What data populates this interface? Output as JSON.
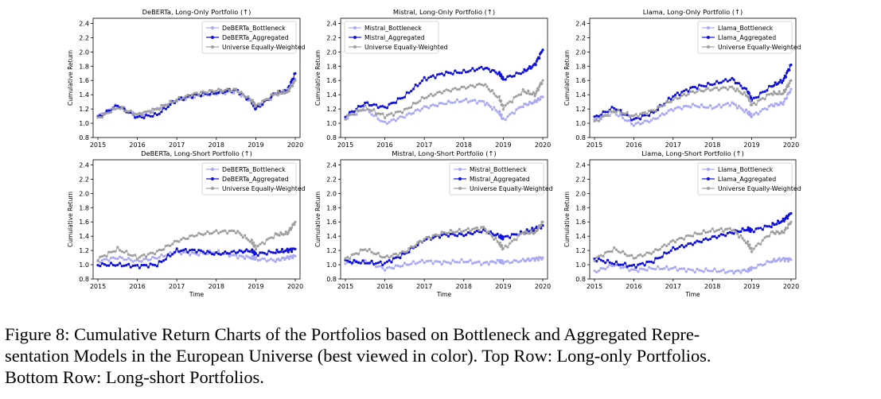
{
  "figure": {
    "caption_lines": [
      "Figure 8: Cumulative Return Charts of the Portfolios based on Bottleneck and Aggregated Repre-",
      "sentation Models in the European Universe (best viewed in color). Top Row: Long-only Portfolios.",
      "Bottom Row: Long-short Portfolios."
    ]
  },
  "colors": {
    "bottleneck": "#a9a9f5",
    "aggregated": "#1010dd",
    "universe": "#a0a0a0"
  },
  "chart_data": [
    {
      "type": "line",
      "title": "DeBERTa, Long-Only Portfolio (↑)",
      "xlabel": "",
      "ylabel": "Cumulative Return",
      "x_ticks": [
        "2015",
        "2016",
        "2017",
        "2018",
        "2019",
        "2020"
      ],
      "y_ticks": [
        "0.8",
        "1.0",
        "1.2",
        "1.4",
        "1.6",
        "1.8",
        "2.0",
        "2.2",
        "2.4"
      ],
      "xlim": [
        2015,
        2020
      ],
      "ylim": [
        0.8,
        2.45
      ],
      "legend_position": "top-right",
      "x": [
        2015.0,
        2015.5,
        2016.0,
        2016.5,
        2017.0,
        2017.5,
        2018.0,
        2018.5,
        2018.9,
        2019.0,
        2019.5,
        2019.8,
        2020.0
      ],
      "series": [
        {
          "name": "DeBERTa_Bottleneck",
          "color_key": "bottleneck",
          "values": [
            1.1,
            1.25,
            1.1,
            1.2,
            1.32,
            1.38,
            1.42,
            1.45,
            1.3,
            1.22,
            1.4,
            1.45,
            1.62
          ]
        },
        {
          "name": "DeBERTa_Aggregated",
          "color_key": "aggregated",
          "values": [
            1.08,
            1.25,
            1.08,
            1.12,
            1.33,
            1.4,
            1.43,
            1.47,
            1.3,
            1.2,
            1.42,
            1.46,
            1.7
          ]
        },
        {
          "name": "Universe Equally-Weighted",
          "color_key": "universe",
          "values": [
            1.07,
            1.22,
            1.12,
            1.2,
            1.33,
            1.42,
            1.46,
            1.47,
            1.32,
            1.24,
            1.42,
            1.44,
            1.6
          ]
        }
      ]
    },
    {
      "type": "line",
      "title": "Mistral, Long-Only Portfolio (↑)",
      "xlabel": "",
      "ylabel": "Cumulative Return",
      "x_ticks": [
        "2015",
        "2016",
        "2017",
        "2018",
        "2019",
        "2020"
      ],
      "y_ticks": [
        "0.8",
        "1.0",
        "1.2",
        "1.4",
        "1.6",
        "1.8",
        "2.0",
        "2.2",
        "2.4"
      ],
      "xlim": [
        2015,
        2020
      ],
      "ylim": [
        0.8,
        2.45
      ],
      "legend_position": "top-left",
      "x": [
        2015.0,
        2015.5,
        2016.0,
        2016.5,
        2017.0,
        2017.5,
        2018.0,
        2018.5,
        2018.9,
        2019.0,
        2019.5,
        2019.8,
        2020.0
      ],
      "series": [
        {
          "name": "Mistral_Bottleneck",
          "color_key": "bottleneck",
          "values": [
            1.08,
            1.2,
            1.0,
            1.1,
            1.22,
            1.28,
            1.32,
            1.3,
            1.15,
            1.05,
            1.25,
            1.3,
            1.37
          ]
        },
        {
          "name": "Mistral_Aggregated",
          "color_key": "aggregated",
          "values": [
            1.1,
            1.28,
            1.22,
            1.38,
            1.62,
            1.7,
            1.72,
            1.78,
            1.7,
            1.62,
            1.72,
            1.82,
            2.03
          ]
        },
        {
          "name": "Universe Equally-Weighted",
          "color_key": "universe",
          "values": [
            1.08,
            1.22,
            1.1,
            1.18,
            1.36,
            1.45,
            1.5,
            1.55,
            1.35,
            1.22,
            1.45,
            1.4,
            1.6
          ]
        }
      ]
    },
    {
      "type": "line",
      "title": "Llama, Long-Only Portfolio (↑)",
      "xlabel": "",
      "ylabel": "Cumulative Return",
      "x_ticks": [
        "2015",
        "2016",
        "2017",
        "2018",
        "2019",
        "2020"
      ],
      "y_ticks": [
        "0.8",
        "1.0",
        "1.2",
        "1.4",
        "1.6",
        "1.8",
        "2.0",
        "2.2",
        "2.4"
      ],
      "xlim": [
        2015,
        2020
      ],
      "ylim": [
        0.8,
        2.45
      ],
      "legend_position": "top-right",
      "x": [
        2015.0,
        2015.5,
        2016.0,
        2016.5,
        2017.0,
        2017.5,
        2018.0,
        2018.5,
        2018.9,
        2019.0,
        2019.5,
        2019.8,
        2020.0
      ],
      "series": [
        {
          "name": "Llama_Bottleneck",
          "color_key": "bottleneck",
          "values": [
            1.05,
            1.15,
            0.98,
            1.05,
            1.2,
            1.25,
            1.22,
            1.28,
            1.15,
            1.1,
            1.25,
            1.28,
            1.48
          ]
        },
        {
          "name": "Llama_Aggregated",
          "color_key": "aggregated",
          "values": [
            1.08,
            1.22,
            1.05,
            1.15,
            1.38,
            1.5,
            1.55,
            1.62,
            1.45,
            1.32,
            1.52,
            1.6,
            1.82
          ]
        },
        {
          "name": "Universe Equally-Weighted",
          "color_key": "universe",
          "values": [
            1.02,
            1.18,
            1.1,
            1.18,
            1.33,
            1.44,
            1.48,
            1.5,
            1.38,
            1.25,
            1.42,
            1.42,
            1.6
          ]
        }
      ]
    },
    {
      "type": "line",
      "title": "DeBERTa, Long-Short Portfolio (↑)",
      "xlabel": "Time",
      "ylabel": "Cumulative Return",
      "x_ticks": [
        "2015",
        "2016",
        "2017",
        "2018",
        "2019",
        "2020"
      ],
      "y_ticks": [
        "0.8",
        "1.0",
        "1.2",
        "1.4",
        "1.6",
        "1.8",
        "2.0",
        "2.2",
        "2.4"
      ],
      "xlim": [
        2015,
        2020
      ],
      "ylim": [
        0.8,
        2.45
      ],
      "legend_position": "top-right",
      "x": [
        2015.0,
        2015.5,
        2016.0,
        2016.5,
        2017.0,
        2017.5,
        2018.0,
        2018.5,
        2018.9,
        2019.0,
        2019.5,
        2019.8,
        2020.0
      ],
      "series": [
        {
          "name": "DeBERTa_Bottleneck",
          "color_key": "bottleneck",
          "values": [
            1.05,
            1.1,
            1.05,
            1.1,
            1.18,
            1.15,
            1.18,
            1.12,
            1.1,
            1.08,
            1.06,
            1.1,
            1.12
          ]
        },
        {
          "name": "DeBERTa_Aggregated",
          "color_key": "aggregated",
          "values": [
            1.0,
            1.0,
            0.98,
            1.0,
            1.2,
            1.2,
            1.15,
            1.18,
            1.2,
            1.15,
            1.18,
            1.2,
            1.22
          ]
        },
        {
          "name": "Universe Equally-Weighted",
          "color_key": "universe",
          "values": [
            1.08,
            1.22,
            1.1,
            1.18,
            1.33,
            1.42,
            1.46,
            1.47,
            1.32,
            1.24,
            1.42,
            1.44,
            1.6
          ]
        }
      ]
    },
    {
      "type": "line",
      "title": "Mistral, Long-Short Portfolio (↑)",
      "xlabel": "Time",
      "ylabel": "Cumulative Return",
      "x_ticks": [
        "2015",
        "2016",
        "2017",
        "2018",
        "2019",
        "2020"
      ],
      "y_ticks": [
        "0.8",
        "1.0",
        "1.2",
        "1.4",
        "1.6",
        "1.8",
        "2.0",
        "2.2",
        "2.4"
      ],
      "xlim": [
        2015,
        2020
      ],
      "ylim": [
        0.8,
        2.45
      ],
      "legend_position": "top-right",
      "x": [
        2015.0,
        2015.5,
        2016.0,
        2016.5,
        2017.0,
        2017.5,
        2018.0,
        2018.5,
        2018.9,
        2019.0,
        2019.5,
        2019.8,
        2020.0
      ],
      "series": [
        {
          "name": "Mistral_Bottleneck",
          "color_key": "bottleneck",
          "values": [
            1.02,
            1.05,
            0.94,
            1.0,
            1.05,
            1.03,
            1.05,
            1.02,
            1.05,
            1.03,
            1.06,
            1.08,
            1.1
          ]
        },
        {
          "name": "Mistral_Aggregated",
          "color_key": "aggregated",
          "values": [
            1.05,
            1.03,
            1.02,
            1.15,
            1.35,
            1.42,
            1.42,
            1.48,
            1.4,
            1.38,
            1.45,
            1.5,
            1.55
          ]
        },
        {
          "name": "Universe Equally-Weighted",
          "color_key": "universe",
          "values": [
            1.08,
            1.22,
            1.1,
            1.18,
            1.36,
            1.45,
            1.48,
            1.52,
            1.3,
            1.22,
            1.45,
            1.45,
            1.6
          ]
        }
      ]
    },
    {
      "type": "line",
      "title": "Llama, Long-Short Portfolio (↑)",
      "xlabel": "Time",
      "ylabel": "Cumulative Return",
      "x_ticks": [
        "2015",
        "2016",
        "2017",
        "2018",
        "2019",
        "2020"
      ],
      "y_ticks": [
        "0.8",
        "1.0",
        "1.2",
        "1.4",
        "1.6",
        "1.8",
        "2.0",
        "2.2",
        "2.4"
      ],
      "xlim": [
        2015,
        2020
      ],
      "ylim": [
        0.8,
        2.45
      ],
      "legend_position": "top-right",
      "x": [
        2015.0,
        2015.5,
        2016.0,
        2016.5,
        2017.0,
        2017.5,
        2018.0,
        2018.5,
        2018.9,
        2019.0,
        2019.5,
        2019.8,
        2020.0
      ],
      "series": [
        {
          "name": "Llama_Bottleneck",
          "color_key": "bottleneck",
          "values": [
            0.9,
            1.0,
            0.92,
            0.95,
            0.95,
            0.92,
            0.92,
            0.9,
            0.92,
            0.95,
            1.05,
            1.08,
            1.07
          ]
        },
        {
          "name": "Llama_Aggregated",
          "color_key": "aggregated",
          "values": [
            1.08,
            1.02,
            0.98,
            1.05,
            1.22,
            1.3,
            1.38,
            1.45,
            1.5,
            1.48,
            1.55,
            1.62,
            1.72
          ]
        },
        {
          "name": "Universe Equally-Weighted",
          "color_key": "universe",
          "values": [
            1.08,
            1.22,
            1.1,
            1.18,
            1.33,
            1.42,
            1.48,
            1.5,
            1.3,
            1.2,
            1.45,
            1.45,
            1.6
          ]
        }
      ]
    }
  ]
}
